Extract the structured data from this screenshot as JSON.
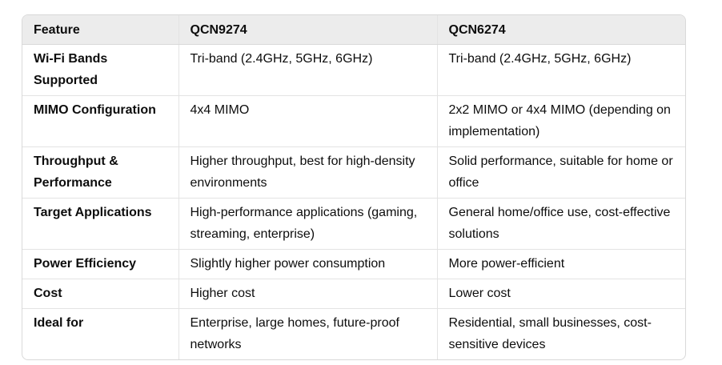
{
  "table": {
    "headers": [
      "Feature",
      "QCN9274",
      "QCN6274"
    ],
    "rows": [
      [
        "Wi-Fi Bands Supported",
        "Tri-band (2.4GHz, 5GHz, 6GHz)",
        "Tri-band (2.4GHz, 5GHz, 6GHz)"
      ],
      [
        "MIMO Configuration",
        "4x4 MIMO",
        "2x2 MIMO or 4x4 MIMO (depending on implementation)"
      ],
      [
        "Throughput & Performance",
        "Higher throughput, best for high-density environments",
        "Solid performance, suitable for home or office"
      ],
      [
        "Target Applications",
        "High-performance applications (gaming, streaming, enterprise)",
        "General home/office use, cost-effective solutions"
      ],
      [
        "Power Efficiency",
        "Slightly higher power consumption",
        "More power-efficient"
      ],
      [
        "Cost",
        "Higher cost",
        "Lower cost"
      ],
      [
        "Ideal for",
        "Enterprise, large homes, future-proof networks",
        "Residential, small businesses, cost-sensitive devices"
      ]
    ]
  }
}
